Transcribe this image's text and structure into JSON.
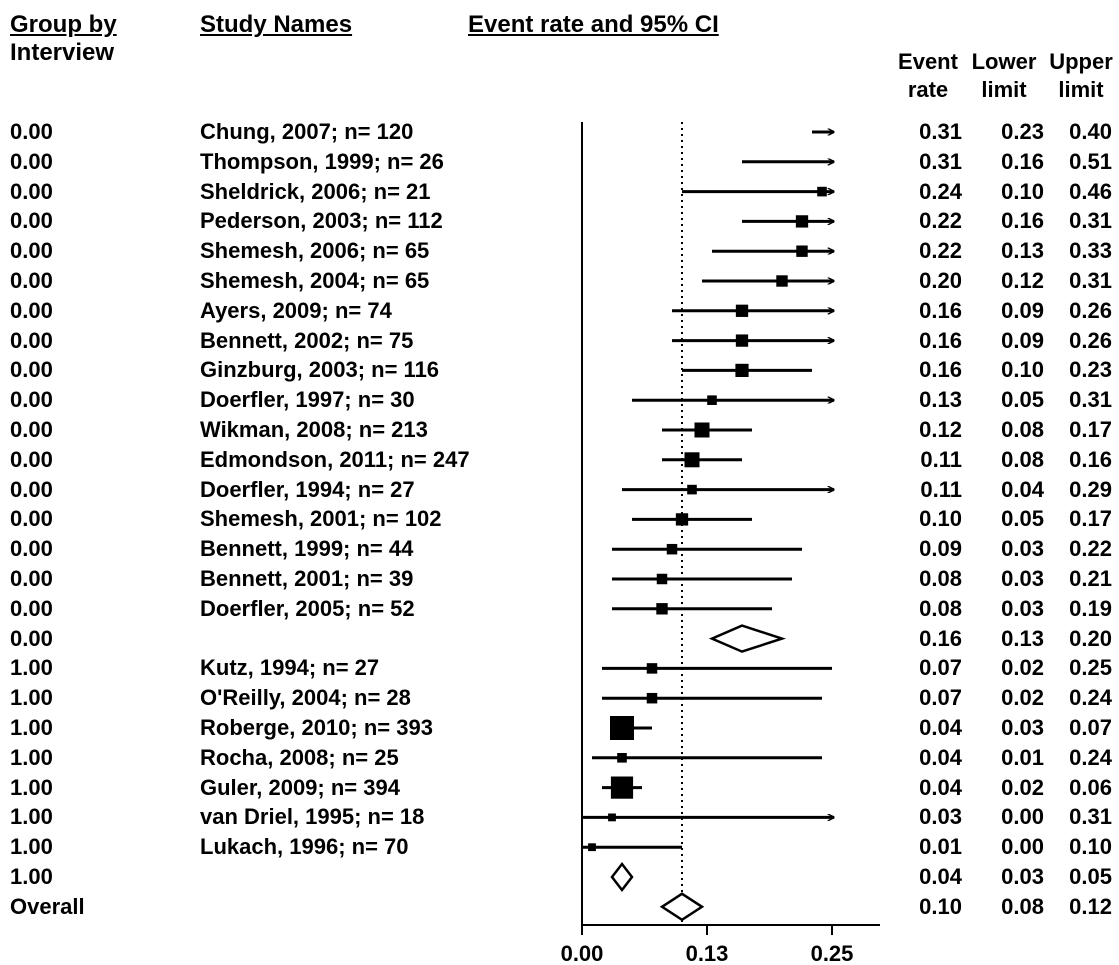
{
  "headers": {
    "group": [
      "Group by",
      "Interview"
    ],
    "study": "Study Names",
    "effect": "Event rate and 95% CI",
    "stat_event": [
      "Event",
      "rate"
    ],
    "stat_lower": [
      "Lower",
      "limit"
    ],
    "stat_upper": [
      "Upper",
      "limit"
    ]
  },
  "chart_data": {
    "type": "forest",
    "title": "Event rate and 95% CI",
    "xlabel": "",
    "xlim": [
      0.0,
      0.25
    ],
    "ticks": [
      "0.00",
      "0.13",
      "0.25"
    ],
    "tick_values": [
      0.0,
      0.125,
      0.25
    ],
    "reference_line": 0.1,
    "rows": [
      {
        "group": "0.00",
        "study": "Chung, 2007;  n= 120",
        "event": "0.31",
        "lower": "0.23",
        "upper": "0.40",
        "kind": "study",
        "weight": 0.3
      },
      {
        "group": "0.00",
        "study": "Thompson, 1999;  n= 26",
        "event": "0.31",
        "lower": "0.16",
        "upper": "0.51",
        "kind": "study",
        "weight": 0.2
      },
      {
        "group": "0.00",
        "study": "Sheldrick, 2006;  n= 21",
        "event": "0.24",
        "lower": "0.10",
        "upper": "0.46",
        "kind": "study",
        "weight": 0.2
      },
      {
        "group": "0.00",
        "study": "Pederson, 2003;  n= 112",
        "event": "0.22",
        "lower": "0.16",
        "upper": "0.31",
        "kind": "study",
        "weight": 0.35
      },
      {
        "group": "0.00",
        "study": "Shemesh, 2006;  n= 65",
        "event": "0.22",
        "lower": "0.13",
        "upper": "0.33",
        "kind": "study",
        "weight": 0.3
      },
      {
        "group": "0.00",
        "study": "Shemesh, 2004;  n= 65",
        "event": "0.20",
        "lower": "0.12",
        "upper": "0.31",
        "kind": "study",
        "weight": 0.3
      },
      {
        "group": "0.00",
        "study": "Ayers, 2009;  n= 74",
        "event": "0.16",
        "lower": "0.09",
        "upper": "0.26",
        "kind": "study",
        "weight": 0.35
      },
      {
        "group": "0.00",
        "study": "Bennett, 2002;  n= 75",
        "event": "0.16",
        "lower": "0.09",
        "upper": "0.26",
        "kind": "study",
        "weight": 0.35
      },
      {
        "group": "0.00",
        "study": "Ginzburg, 2003;  n= 116",
        "event": "0.16",
        "lower": "0.10",
        "upper": "0.23",
        "kind": "study",
        "weight": 0.4
      },
      {
        "group": "0.00",
        "study": "Doerfler, 1997;  n= 30",
        "event": "0.13",
        "lower": "0.05",
        "upper": "0.31",
        "kind": "study",
        "weight": 0.2
      },
      {
        "group": "0.00",
        "study": "Wikman, 2008;  n= 213",
        "event": "0.12",
        "lower": "0.08",
        "upper": "0.17",
        "kind": "study",
        "weight": 0.5
      },
      {
        "group": "0.00",
        "study": "Edmondson, 2011;  n= 247",
        "event": "0.11",
        "lower": "0.08",
        "upper": "0.16",
        "kind": "study",
        "weight": 0.5
      },
      {
        "group": "0.00",
        "study": "Doerfler, 1994;  n= 27",
        "event": "0.11",
        "lower": "0.04",
        "upper": "0.29",
        "kind": "study",
        "weight": 0.2
      },
      {
        "group": "0.00",
        "study": "Shemesh, 2001;  n= 102",
        "event": "0.10",
        "lower": "0.05",
        "upper": "0.17",
        "kind": "study",
        "weight": 0.35
      },
      {
        "group": "0.00",
        "study": "Bennett, 1999;  n= 44",
        "event": "0.09",
        "lower": "0.03",
        "upper": "0.22",
        "kind": "study",
        "weight": 0.25
      },
      {
        "group": "0.00",
        "study": "Bennett, 2001;  n= 39",
        "event": "0.08",
        "lower": "0.03",
        "upper": "0.21",
        "kind": "study",
        "weight": 0.25
      },
      {
        "group": "0.00",
        "study": "Doerfler, 2005;  n= 52",
        "event": "0.08",
        "lower": "0.03",
        "upper": "0.19",
        "kind": "study",
        "weight": 0.3
      },
      {
        "group": "0.00",
        "study": "",
        "event": "0.16",
        "lower": "0.13",
        "upper": "0.20",
        "kind": "summary"
      },
      {
        "group": "1.00",
        "study": "Kutz, 1994;  n= 27",
        "event": "0.07",
        "lower": "0.02",
        "upper": "0.25",
        "kind": "study",
        "weight": 0.25
      },
      {
        "group": "1.00",
        "study": "O'Reilly, 2004;  n= 28",
        "event": "0.07",
        "lower": "0.02",
        "upper": "0.24",
        "kind": "study",
        "weight": 0.25
      },
      {
        "group": "1.00",
        "study": "Roberge, 2010;  n= 393",
        "event": "0.04",
        "lower": "0.03",
        "upper": "0.07",
        "kind": "study",
        "weight": 1.0
      },
      {
        "group": "1.00",
        "study": "Rocha, 2008;  n= 25",
        "event": "0.04",
        "lower": "0.01",
        "upper": "0.24",
        "kind": "study",
        "weight": 0.2
      },
      {
        "group": "1.00",
        "study": "Guler, 2009;  n= 394",
        "event": "0.04",
        "lower": "0.02",
        "upper": "0.06",
        "kind": "study",
        "weight": 0.9
      },
      {
        "group": "1.00",
        "study": "van Driel, 1995;  n= 18",
        "event": "0.03",
        "lower": "0.00",
        "upper": "0.31",
        "kind": "study",
        "weight": 0.1
      },
      {
        "group": "1.00",
        "study": "Lukach, 1996;  n= 70",
        "event": "0.01",
        "lower": "0.00",
        "upper": "0.10",
        "kind": "study",
        "weight": 0.1
      },
      {
        "group": "1.00",
        "study": "",
        "event": "0.04",
        "lower": "0.03",
        "upper": "0.05",
        "kind": "summary"
      },
      {
        "group": "Overall",
        "study": "",
        "event": "0.10",
        "lower": "0.08",
        "upper": "0.12",
        "kind": "summary"
      }
    ]
  }
}
